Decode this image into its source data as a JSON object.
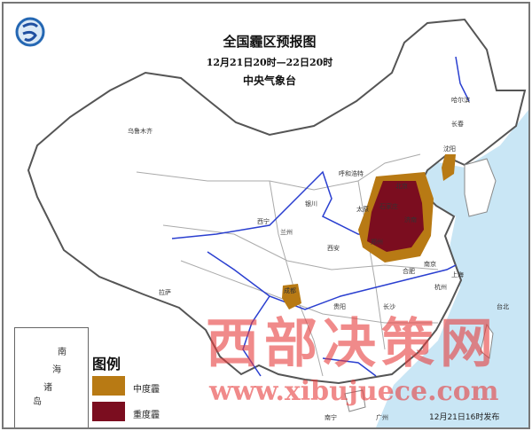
{
  "title": "全国霾区预报图",
  "period": "12月21日20时—22日20时",
  "issuer": "中央气象台",
  "logo": "中央气象台徽标",
  "cities": [
    "乌鲁木齐",
    "哈尔滨",
    "长春",
    "沈阳",
    "呼和浩特",
    "北京",
    "石家庄",
    "太原",
    "济南",
    "郑州",
    "西安",
    "银川",
    "兰州",
    "西宁",
    "成都",
    "合肥",
    "南京",
    "上海",
    "拉萨",
    "长沙",
    "贵阳",
    "杭州",
    "南宁",
    "广州",
    "台北"
  ],
  "inset": {
    "labels": [
      "南",
      "海",
      "诸",
      "岛"
    ]
  },
  "legend": {
    "title": "图例",
    "items": [
      {
        "label": "中度霾",
        "color": "#b87a14"
      },
      {
        "label": "重度霾",
        "color": "#7b0d1f"
      }
    ]
  },
  "watermark": {
    "text": "西部决策网",
    "url": "www.xibujuece.com"
  },
  "issued": "12月21日16时发布",
  "colors": {
    "sea": "#c9e6f5",
    "land": "#ffffff",
    "river": "#2a3fd0",
    "border": "#555555"
  }
}
